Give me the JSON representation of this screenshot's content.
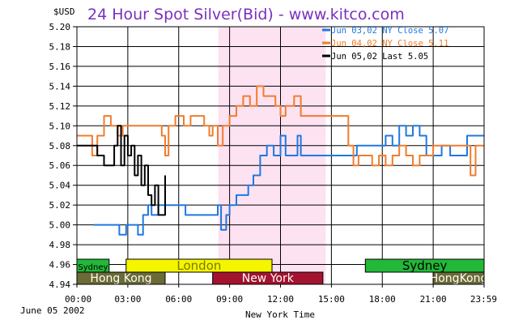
{
  "chart_data": {
    "type": "line",
    "title": "24 Hour Spot Silver(Bid) - www.kitco.com",
    "unit_label": "$USD",
    "xlabel": "New York Time",
    "date_label": "June 05 2002",
    "ylim": [
      4.94,
      5.2
    ],
    "y_ticks": [
      "5.20",
      "5.18",
      "5.16",
      "5.14",
      "5.12",
      "5.10",
      "5.08",
      "5.06",
      "5.04",
      "5.02",
      "5.00",
      "4.98",
      "4.96",
      "4.94"
    ],
    "x_ticks": [
      "00:00",
      "03:00",
      "06:00",
      "09:00",
      "12:00",
      "15:00",
      "18:00",
      "21:00",
      "23:59"
    ],
    "ny_session_hours": [
      8.33,
      14.67
    ],
    "sessions": [
      {
        "label": "Sydney",
        "start": 0,
        "end": 1.9,
        "row": "upper",
        "color": "#22b838",
        "text_color": "#000000"
      },
      {
        "label": "London",
        "start": 2.9,
        "end": 11.5,
        "row": "upper",
        "color": "#f5f500",
        "text_color": "#7a7a00"
      },
      {
        "label": "Sydney",
        "start": 17.0,
        "end": 24.0,
        "row": "upper",
        "color": "#22b838",
        "text_color": "#000000"
      },
      {
        "label": "Hong Kong",
        "start": 0,
        "end": 5.2,
        "row": "lower",
        "color": "#6b6b36",
        "text_color": "#ffffff"
      },
      {
        "label": "New York",
        "start": 8.0,
        "end": 14.5,
        "row": "lower",
        "color": "#a3122e",
        "text_color": "#ffffff"
      },
      {
        "label": "HongKong",
        "start": 21.0,
        "end": 24.0,
        "row": "lower",
        "color": "#6b6b36",
        "text_color": "#ffffff"
      }
    ],
    "series": [
      {
        "name": "Jun 03,02",
        "legend": "Jun 03,02  NY Close 5.07",
        "color": "#1f78e0",
        "points": [
          [
            1.0,
            5.0
          ],
          [
            2.2,
            5.0
          ],
          [
            2.5,
            4.99
          ],
          [
            2.9,
            5.0
          ],
          [
            3.3,
            5.0
          ],
          [
            3.6,
            4.99
          ],
          [
            3.9,
            5.01
          ],
          [
            4.2,
            5.02
          ],
          [
            4.4,
            5.01
          ],
          [
            4.8,
            5.02
          ],
          [
            5.2,
            5.02
          ],
          [
            5.6,
            5.02
          ],
          [
            6.0,
            5.02
          ],
          [
            6.4,
            5.01
          ],
          [
            7.0,
            5.01
          ],
          [
            8.0,
            5.01
          ],
          [
            8.3,
            5.02
          ],
          [
            8.5,
            4.995
          ],
          [
            8.8,
            5.01
          ],
          [
            9.0,
            5.02
          ],
          [
            9.4,
            5.03
          ],
          [
            9.8,
            5.03
          ],
          [
            10.1,
            5.04
          ],
          [
            10.4,
            5.05
          ],
          [
            10.8,
            5.07
          ],
          [
            11.2,
            5.08
          ],
          [
            11.6,
            5.07
          ],
          [
            12.0,
            5.09
          ],
          [
            12.3,
            5.07
          ],
          [
            12.6,
            5.07
          ],
          [
            13.0,
            5.09
          ],
          [
            13.2,
            5.07
          ],
          [
            14.0,
            5.07
          ],
          [
            15.0,
            5.07
          ],
          [
            16.0,
            5.07
          ],
          [
            16.5,
            5.08
          ],
          [
            17.0,
            5.08
          ],
          [
            17.8,
            5.08
          ],
          [
            18.2,
            5.09
          ],
          [
            18.6,
            5.08
          ],
          [
            19.0,
            5.1
          ],
          [
            19.4,
            5.09
          ],
          [
            19.8,
            5.1
          ],
          [
            20.2,
            5.09
          ],
          [
            20.6,
            5.07
          ],
          [
            21.0,
            5.07
          ],
          [
            21.5,
            5.08
          ],
          [
            22.0,
            5.07
          ],
          [
            22.5,
            5.07
          ],
          [
            23.0,
            5.09
          ],
          [
            23.5,
            5.09
          ],
          [
            23.99,
            5.09
          ]
        ]
      },
      {
        "name": "Jun 04,02",
        "legend": "Jun 04,02  NY Close 5.11",
        "color": "#f07c2c",
        "points": [
          [
            0.0,
            5.09
          ],
          [
            0.5,
            5.09
          ],
          [
            0.9,
            5.07
          ],
          [
            1.2,
            5.09
          ],
          [
            1.6,
            5.11
          ],
          [
            2.0,
            5.1
          ],
          [
            2.4,
            5.09
          ],
          [
            2.7,
            5.1
          ],
          [
            3.0,
            5.1
          ],
          [
            4.0,
            5.1
          ],
          [
            4.6,
            5.1
          ],
          [
            5.0,
            5.09
          ],
          [
            5.2,
            5.07
          ],
          [
            5.4,
            5.1
          ],
          [
            5.8,
            5.11
          ],
          [
            6.3,
            5.1
          ],
          [
            6.7,
            5.11
          ],
          [
            7.1,
            5.11
          ],
          [
            7.5,
            5.1
          ],
          [
            7.8,
            5.09
          ],
          [
            8.0,
            5.1
          ],
          [
            8.3,
            5.08
          ],
          [
            8.6,
            5.1
          ],
          [
            9.0,
            5.11
          ],
          [
            9.4,
            5.12
          ],
          [
            9.8,
            5.13
          ],
          [
            10.2,
            5.12
          ],
          [
            10.6,
            5.14
          ],
          [
            11.0,
            5.13
          ],
          [
            11.4,
            5.13
          ],
          [
            11.7,
            5.12
          ],
          [
            12.0,
            5.11
          ],
          [
            12.3,
            5.12
          ],
          [
            12.8,
            5.13
          ],
          [
            13.2,
            5.11
          ],
          [
            14.0,
            5.11
          ],
          [
            15.0,
            5.11
          ],
          [
            15.5,
            5.11
          ],
          [
            16.0,
            5.08
          ],
          [
            16.3,
            5.06
          ],
          [
            16.6,
            5.07
          ],
          [
            17.0,
            5.07
          ],
          [
            17.4,
            5.06
          ],
          [
            17.8,
            5.07
          ],
          [
            18.2,
            5.06
          ],
          [
            18.6,
            5.07
          ],
          [
            19.0,
            5.08
          ],
          [
            19.4,
            5.07
          ],
          [
            19.8,
            5.06
          ],
          [
            20.2,
            5.07
          ],
          [
            20.6,
            5.07
          ],
          [
            21.0,
            5.08
          ],
          [
            21.5,
            5.08
          ],
          [
            22.0,
            5.08
          ],
          [
            22.5,
            5.08
          ],
          [
            23.0,
            5.08
          ],
          [
            23.2,
            5.05
          ],
          [
            23.5,
            5.08
          ],
          [
            23.99,
            5.08
          ]
        ]
      },
      {
        "name": "Jun 05,02",
        "legend": "Jun 05,02  Last 5.05",
        "color": "#000000",
        "points": [
          [
            0.0,
            5.08
          ],
          [
            0.9,
            5.08
          ],
          [
            1.2,
            5.07
          ],
          [
            1.6,
            5.06
          ],
          [
            2.0,
            5.06
          ],
          [
            2.2,
            5.08
          ],
          [
            2.4,
            5.1
          ],
          [
            2.6,
            5.06
          ],
          [
            2.8,
            5.09
          ],
          [
            3.0,
            5.07
          ],
          [
            3.2,
            5.08
          ],
          [
            3.4,
            5.05
          ],
          [
            3.6,
            5.07
          ],
          [
            3.8,
            5.04
          ],
          [
            4.0,
            5.06
          ],
          [
            4.2,
            5.03
          ],
          [
            4.4,
            5.02
          ],
          [
            4.6,
            5.04
          ],
          [
            4.8,
            5.01
          ],
          [
            5.0,
            5.01
          ],
          [
            5.2,
            5.05
          ]
        ]
      }
    ]
  }
}
